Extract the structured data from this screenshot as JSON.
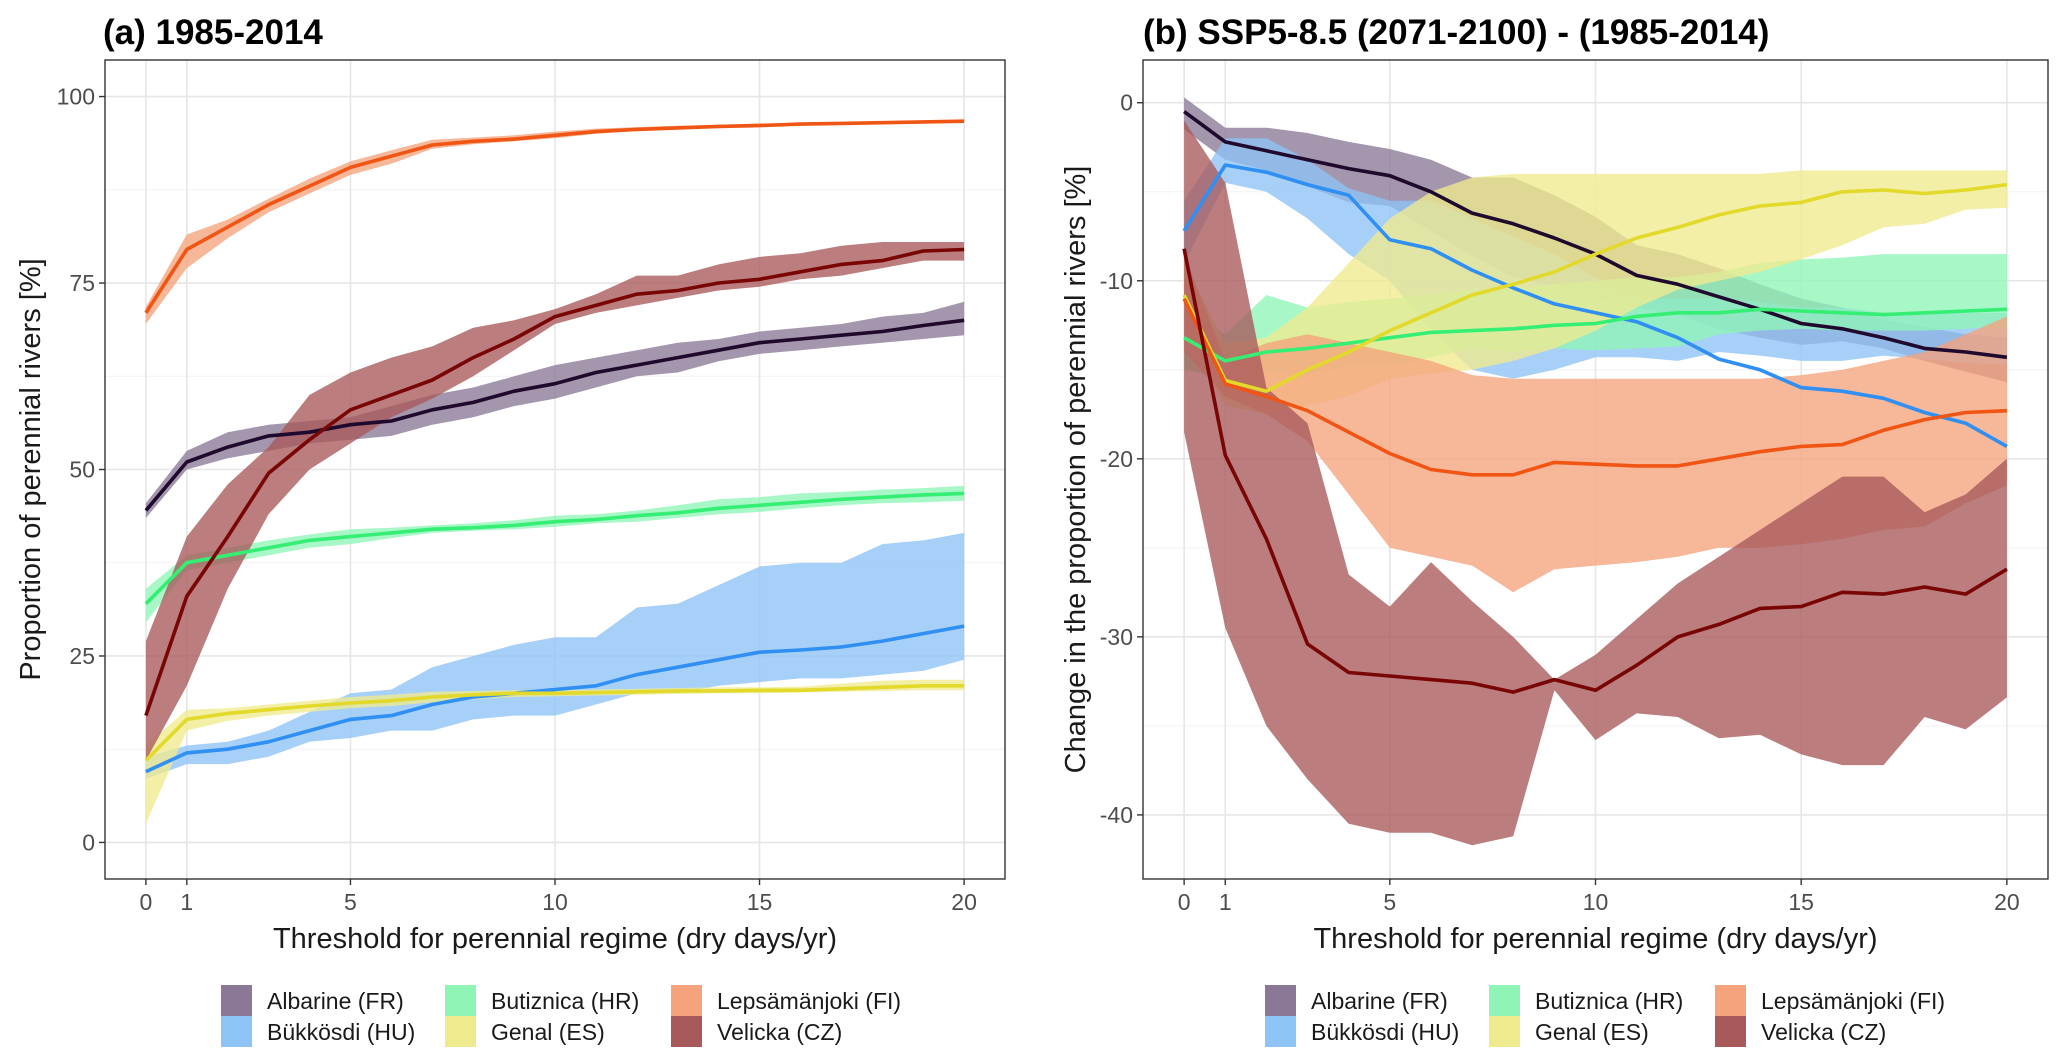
{
  "chart_data": [
    {
      "id": "a",
      "type": "line",
      "title": "(a) 1985-2014",
      "xlabel": "Threshold for perennial regime (dry days/yr)",
      "ylabel": "Proportion of perennial rivers [%]",
      "xlim": [
        -1,
        21
      ],
      "ylim": [
        -4.9,
        104.9
      ],
      "xticks": [
        0,
        1,
        5,
        10,
        15,
        20
      ],
      "xtick_labels": [
        "0",
        "1",
        "5",
        "10",
        "15",
        "20"
      ],
      "yticks": [
        0,
        25,
        50,
        75,
        100
      ],
      "ytick_labels": [
        "0",
        "25",
        "50",
        "75",
        "100"
      ],
      "grid": true,
      "x": [
        0,
        1,
        2,
        3,
        4,
        5,
        6,
        7,
        8,
        9,
        10,
        11,
        12,
        13,
        14,
        15,
        16,
        17,
        18,
        19,
        20
      ],
      "series": [
        {
          "name": "Albarine (FR)",
          "key": "albarine",
          "values": [
            44.5,
            51,
            53,
            54.5,
            55,
            56,
            56.5,
            58,
            59,
            60.5,
            61.5,
            63,
            64,
            65,
            66,
            67,
            67.5,
            68,
            68.5,
            69.3,
            70
          ],
          "lower": [
            43.5,
            50,
            51.5,
            52.5,
            53.5,
            54,
            54.5,
            56,
            57,
            58.5,
            59.5,
            61,
            62.5,
            63,
            64.5,
            65.5,
            66,
            66.5,
            67,
            67.5,
            68
          ],
          "upper": [
            45.5,
            52.5,
            55,
            56,
            56.5,
            57,
            58.5,
            60,
            61,
            62.5,
            64,
            65,
            66,
            67,
            67.5,
            68.5,
            69,
            69.5,
            70.5,
            71,
            72.5
          ]
        },
        {
          "name": "Bükkösdi (HU)",
          "key": "bukkosdi",
          "values": [
            9.5,
            12,
            12.5,
            13.5,
            15,
            16.5,
            17,
            18.5,
            19.5,
            20,
            20.5,
            21,
            22.5,
            23.5,
            24.5,
            25.5,
            25.8,
            26.2,
            27,
            28,
            29
          ],
          "lower": [
            8.5,
            10.5,
            10.5,
            11.5,
            13.5,
            14,
            15,
            15,
            16.5,
            17,
            17,
            18.5,
            20,
            20,
            21,
            21.5,
            22,
            22,
            22.5,
            23,
            24.5
          ],
          "upper": [
            11.5,
            13,
            13.5,
            15,
            17.5,
            20,
            20.5,
            23.5,
            25,
            26.5,
            27.5,
            27.5,
            31.5,
            32,
            34.5,
            37,
            37.5,
            37.5,
            40,
            40.5,
            41.5
          ]
        },
        {
          "name": "Butiznica (HR)",
          "key": "butiznica",
          "values": [
            32,
            37.5,
            38.5,
            39.5,
            40.5,
            41,
            41.5,
            42,
            42.2,
            42.5,
            43,
            43.3,
            43.8,
            44.2,
            44.8,
            45.2,
            45.6,
            46,
            46.3,
            46.6,
            46.8
          ],
          "lower": [
            29.5,
            36.5,
            37.5,
            38.5,
            39.5,
            40,
            40.8,
            41.5,
            41.8,
            42,
            42.3,
            42.8,
            43,
            43.5,
            44,
            44.3,
            44.8,
            45.2,
            45.5,
            45.6,
            45.8
          ],
          "upper": [
            34,
            38.5,
            39.5,
            40.5,
            41.3,
            42,
            42.2,
            42.5,
            42.8,
            43.2,
            43.8,
            44,
            44.5,
            45.2,
            46,
            46.3,
            46.8,
            47,
            47.3,
            47.5,
            47.8
          ]
        },
        {
          "name": "Genal (ES)",
          "key": "genal",
          "values": [
            11,
            16.5,
            17.3,
            17.8,
            18.3,
            18.7,
            19,
            19.5,
            19.8,
            20,
            20,
            20.1,
            20.2,
            20.3,
            20.3,
            20.4,
            20.4,
            20.6,
            20.8,
            21,
            21
          ],
          "lower": [
            2.5,
            15,
            16.3,
            17,
            17.5,
            18,
            18.3,
            18.8,
            19.2,
            19.5,
            19.6,
            19.7,
            19.8,
            19.9,
            20,
            20,
            20.1,
            20.2,
            20.3,
            20.4,
            20.4
          ],
          "upper": [
            13,
            17.8,
            18,
            18.5,
            19,
            19.5,
            19.8,
            20.2,
            20.3,
            20.4,
            20.4,
            20.5,
            20.6,
            20.7,
            20.8,
            20.8,
            20.9,
            21.3,
            21.7,
            21.8,
            21.8
          ]
        },
        {
          "name": "Lepsämänjoki (FI)",
          "key": "lepsamanjoki",
          "values": [
            71,
            79.5,
            82.5,
            85.5,
            88,
            90.5,
            92,
            93.5,
            94,
            94.3,
            94.8,
            95.3,
            95.6,
            95.8,
            96,
            96.1,
            96.3,
            96.4,
            96.5,
            96.6,
            96.7
          ],
          "lower": [
            69.5,
            77,
            81,
            84.5,
            87,
            89.5,
            91,
            93,
            93.6,
            94,
            94.4,
            95,
            95.4,
            95.6,
            95.8,
            96,
            96.1,
            96.2,
            96.3,
            96.4,
            96.5
          ],
          "upper": [
            71.8,
            81.5,
            83.5,
            86.3,
            89,
            91.3,
            92.8,
            94.2,
            94.5,
            94.8,
            95.3,
            95.7,
            95.9,
            96.1,
            96.2,
            96.4,
            96.5,
            96.6,
            96.7,
            96.8,
            96.9
          ]
        },
        {
          "name": "Velicka (CZ)",
          "key": "velicka",
          "values": [
            17,
            33,
            41,
            49.5,
            54,
            58,
            60,
            62,
            65,
            67.5,
            70.5,
            72,
            73.5,
            74,
            75,
            75.5,
            76.5,
            77.5,
            78,
            79.3,
            79.5
          ],
          "lower": [
            11,
            21,
            34,
            44,
            50,
            53.5,
            57,
            59.5,
            62.5,
            66,
            69.5,
            71,
            72,
            73,
            74,
            74.5,
            75.5,
            76,
            77,
            78,
            78
          ],
          "upper": [
            27,
            41,
            48,
            53,
            60,
            63,
            65,
            66.5,
            69,
            70,
            71.5,
            73.5,
            76,
            76,
            77.5,
            78.5,
            79,
            80,
            80.5,
            80.5,
            80.5
          ]
        }
      ]
    },
    {
      "id": "b",
      "type": "line",
      "title": "(b) SSP5-8.5 (2071-2100) - (1985-2014)",
      "xlabel": "Threshold for perennial regime (dry days/yr)",
      "ylabel": "Change in the proportion of perennial rivers [%]",
      "xlim": [
        -1,
        21
      ],
      "ylim": [
        -43.6,
        2.4
      ],
      "xticks": [
        0,
        1,
        5,
        10,
        15,
        20
      ],
      "xtick_labels": [
        "0",
        "1",
        "5",
        "10",
        "15",
        "20"
      ],
      "yticks": [
        -40,
        -30,
        -20,
        -10,
        0
      ],
      "ytick_labels": [
        "-40",
        "-30",
        "-20",
        "-10",
        "0"
      ],
      "grid": true,
      "x": [
        0,
        1,
        2,
        3,
        4,
        5,
        6,
        7,
        8,
        9,
        10,
        11,
        12,
        13,
        14,
        15,
        16,
        17,
        18,
        19,
        20
      ],
      "series": [
        {
          "name": "Albarine (FR)",
          "key": "albarine",
          "values": [
            -0.5,
            -2.2,
            -2.7,
            -3.2,
            -3.7,
            -4.1,
            -5,
            -6.2,
            -6.8,
            -7.6,
            -8.5,
            -9.7,
            -10.2,
            -10.9,
            -11.6,
            -12.4,
            -12.7,
            -13.2,
            -13.8,
            -14,
            -14.3
          ],
          "lower": [
            -1.5,
            -3.2,
            -3.8,
            -4.7,
            -5.6,
            -5.8,
            -7.2,
            -8.6,
            -9.8,
            -10.3,
            -11,
            -11.5,
            -11.9,
            -12.7,
            -13.2,
            -13.6,
            -13.4,
            -13.8,
            -14.5,
            -15.1,
            -15.7
          ],
          "upper": [
            0.3,
            -1.4,
            -1.4,
            -1.7,
            -2.2,
            -2.6,
            -3.2,
            -4.2,
            -4.2,
            -5.2,
            -6.4,
            -8,
            -8.5,
            -9.3,
            -10.2,
            -11,
            -11.5,
            -12.2,
            -12.6,
            -13,
            -13.2
          ]
        },
        {
          "name": "Bükkösdi (HU)",
          "key": "bukkosdi",
          "values": [
            -7.2,
            -3.5,
            -3.9,
            -4.6,
            -5.2,
            -7.7,
            -8.2,
            -9.4,
            -10.4,
            -11.3,
            -11.8,
            -12.3,
            -13.2,
            -14.4,
            -15,
            -16,
            -16.2,
            -16.6,
            -17.4,
            -18,
            -19.3
          ],
          "lower": [
            -9,
            -4.5,
            -5,
            -6.5,
            -8.5,
            -10,
            -12.8,
            -15,
            -15.5,
            -15,
            -14.3,
            -14.3,
            -14.5,
            -14,
            -14.2,
            -14.5,
            -14.5,
            -14.2,
            -14.4,
            -14.6,
            -14.7
          ],
          "upper": [
            -5.5,
            -2,
            -2,
            -3.2,
            -4.8,
            -5.5,
            -5.5,
            -6.5,
            -7.5,
            -8.5,
            -9.8,
            -11,
            -11,
            -11,
            -11.2,
            -11.5,
            -11.5,
            -11.8,
            -11.8,
            -11.8,
            -11.8
          ]
        },
        {
          "name": "Butiznica (HR)",
          "key": "butiznica",
          "values": [
            -13.2,
            -14.5,
            -14,
            -13.8,
            -13.5,
            -13.2,
            -12.9,
            -12.8,
            -12.7,
            -12.5,
            -12.4,
            -12,
            -11.8,
            -11.8,
            -11.6,
            -11.7,
            -11.8,
            -11.9,
            -11.8,
            -11.7,
            -11.6
          ],
          "lower": [
            -15,
            -15.5,
            -15.2,
            -15.2,
            -14.8,
            -14.8,
            -14.3,
            -13.8,
            -14,
            -13.8,
            -13.9,
            -13.8,
            -13.7,
            -13,
            -12.8,
            -12.7,
            -12.8,
            -12.8,
            -12.8,
            -12.7,
            -12.6
          ],
          "upper": [
            -11.5,
            -13,
            -10.8,
            -11.5,
            -11.2,
            -11,
            -10.8,
            -10.5,
            -10.5,
            -10.2,
            -10,
            -9.8,
            -9.8,
            -9.5,
            -9,
            -8.8,
            -8.7,
            -8.5,
            -8.5,
            -8.5,
            -8.5
          ]
        },
        {
          "name": "Genal (ES)",
          "key": "genal",
          "values": [
            -10.8,
            -15.6,
            -16.2,
            -15,
            -14,
            -12.8,
            -11.8,
            -10.8,
            -10.2,
            -9.5,
            -8.5,
            -7.6,
            -7,
            -6.3,
            -5.8,
            -5.6,
            -5,
            -4.9,
            -5.1,
            -4.9,
            -4.6
          ],
          "lower": [
            -13,
            -17,
            -17.5,
            -17,
            -16.5,
            -15.5,
            -15.2,
            -15,
            -14.5,
            -13.8,
            -12.8,
            -11.5,
            -10.5,
            -10,
            -9.5,
            -8.8,
            -8,
            -7,
            -6.8,
            -6,
            -5.9
          ],
          "upper": [
            -9,
            -13.5,
            -13.2,
            -11.5,
            -9,
            -6.5,
            -5,
            -4.2,
            -4,
            -4,
            -4,
            -4,
            -4,
            -4,
            -4,
            -3.8,
            -3.8,
            -3.8,
            -3.8,
            -3.8,
            -3.8
          ]
        },
        {
          "name": "Lepsämänjoki (FI)",
          "key": "lepsamanjoki",
          "values": [
            -11,
            -15.8,
            -16.5,
            -17.3,
            -18.5,
            -19.7,
            -20.6,
            -20.9,
            -20.9,
            -20.2,
            -20.3,
            -20.4,
            -20.4,
            -20,
            -19.6,
            -19.3,
            -19.2,
            -18.4,
            -17.8,
            -17.4,
            -17.3
          ],
          "lower": [
            -14,
            -16.5,
            -17.5,
            -19,
            -22,
            -25,
            -25.5,
            -26,
            -27.5,
            -26.2,
            -26,
            -25.8,
            -25.5,
            -25,
            -25,
            -24.8,
            -24.5,
            -24,
            -23.8,
            -22.5,
            -21.5
          ],
          "upper": [
            -8.5,
            -14.5,
            -13.5,
            -13,
            -13.5,
            -14,
            -14.5,
            -15.3,
            -15.5,
            -15.5,
            -15.5,
            -15.5,
            -15.5,
            -15.5,
            -15.5,
            -15.3,
            -15,
            -14.5,
            -14,
            -13,
            -12
          ]
        },
        {
          "name": "Velicka (CZ)",
          "key": "velicka",
          "values": [
            -8.2,
            -19.8,
            -24.5,
            -30.4,
            -32,
            -32.2,
            -32.4,
            -32.6,
            -33.1,
            -32.4,
            -33,
            -31.6,
            -30,
            -29.3,
            -28.4,
            -28.3,
            -27.5,
            -27.6,
            -27.2,
            -27.6,
            -26.2
          ],
          "lower": [
            -18.5,
            -29.5,
            -35,
            -38,
            -40.5,
            -41,
            -41,
            -41.7,
            -41.2,
            -33,
            -35.8,
            -34.3,
            -34.5,
            -35.7,
            -35.5,
            -36.6,
            -37.2,
            -37.2,
            -34.5,
            -35.2,
            -33.4
          ],
          "upper": [
            -1,
            -4.5,
            -16,
            -18,
            -26.5,
            -28.3,
            -25.8,
            -28,
            -30,
            -32.4,
            -31,
            -29,
            -27,
            -25.5,
            -24,
            -22.5,
            -21,
            -21,
            -23,
            -22,
            -20
          ]
        }
      ]
    }
  ],
  "legend": {
    "position": "bottom",
    "items": [
      {
        "key": "albarine",
        "label": "Albarine (FR)"
      },
      {
        "key": "bukkosdi",
        "label": "Bükkösdi (HU)"
      },
      {
        "key": "butiznica",
        "label": "Butiznica (HR)"
      },
      {
        "key": "genal",
        "label": "Genal (ES)"
      },
      {
        "key": "lepsamanjoki",
        "label": "Lepsämänjoki (FI)"
      },
      {
        "key": "velicka",
        "label": "Velicka (CZ)"
      }
    ]
  },
  "colors": {
    "albarine": {
      "line": "#1f0a2e",
      "fill": "#8a7896"
    },
    "bukkosdi": {
      "line": "#2f8ff2",
      "fill": "#8ec3f7"
    },
    "butiznica": {
      "line": "#35ee74",
      "fill": "#8ff5b7"
    },
    "genal": {
      "line": "#e2d92b",
      "fill": "#efea8e"
    },
    "lepsamanjoki": {
      "line": "#f05514",
      "fill": "#f5a37c"
    },
    "velicka": {
      "line": "#7a0505",
      "fill": "#a8595a"
    }
  }
}
